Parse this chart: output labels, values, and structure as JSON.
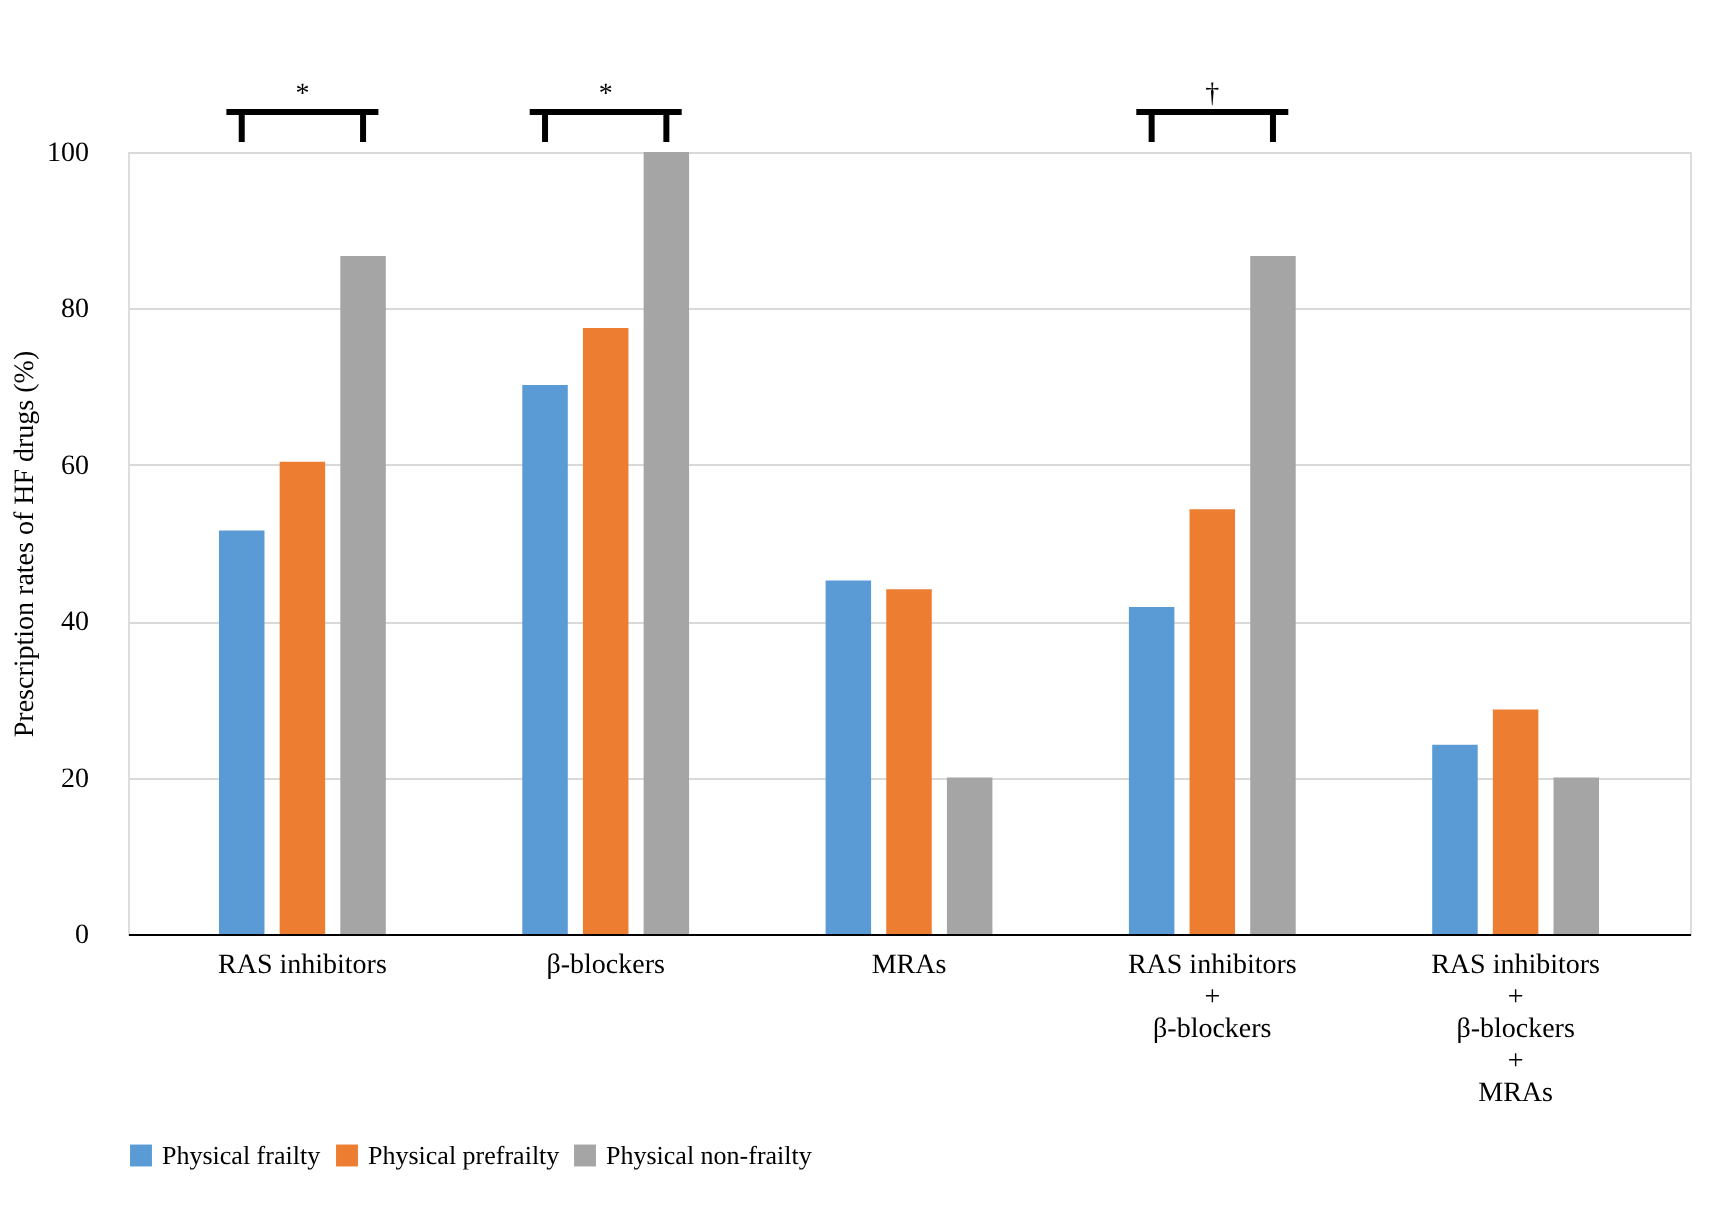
{
  "chart_data": {
    "type": "bar",
    "ylabel": "Prescription rates of HF drugs (%)",
    "categories": [
      "RAS inhibitors",
      "β-blockers",
      "MRAs",
      "RAS inhibitors\n+\nβ-blockers",
      "RAS inhibitors\n+\nβ-blockers\n+\nMRAs"
    ],
    "series": [
      {
        "name": "Physical frailty",
        "color": "#5b9bd5",
        "values": [
          51.6,
          70.2,
          45.2,
          41.8,
          24.2
        ]
      },
      {
        "name": "Physical prefrailty",
        "color": "#ed7d31",
        "values": [
          60.4,
          77.5,
          44.1,
          54.3,
          28.7
        ]
      },
      {
        "name": "Physical non-frailty",
        "color": "#a5a5a5",
        "values": [
          86.7,
          100,
          20,
          86.7,
          20
        ]
      }
    ],
    "ylim": [
      0,
      100
    ],
    "yticks": [
      0,
      20,
      40,
      60,
      80,
      100
    ],
    "grid": "y",
    "legend": "bottom",
    "annotations": [
      "*",
      "*",
      "†"
    ]
  }
}
